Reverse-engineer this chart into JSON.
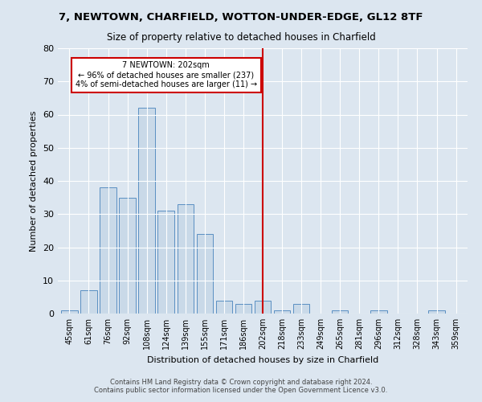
{
  "title": "7, NEWTOWN, CHARFIELD, WOTTON-UNDER-EDGE, GL12 8TF",
  "subtitle": "Size of property relative to detached houses in Charfield",
  "xlabel": "Distribution of detached houses by size in Charfield",
  "ylabel": "Number of detached properties",
  "categories": [
    "45sqm",
    "61sqm",
    "76sqm",
    "92sqm",
    "108sqm",
    "124sqm",
    "139sqm",
    "155sqm",
    "171sqm",
    "186sqm",
    "202sqm",
    "218sqm",
    "233sqm",
    "249sqm",
    "265sqm",
    "281sqm",
    "296sqm",
    "312sqm",
    "328sqm",
    "343sqm",
    "359sqm"
  ],
  "values": [
    1,
    7,
    38,
    35,
    62,
    31,
    33,
    24,
    4,
    3,
    4,
    1,
    3,
    0,
    1,
    0,
    1,
    0,
    0,
    1,
    0
  ],
  "bar_color": "#c9d9e8",
  "bar_edge_color": "#5a8fc2",
  "vline_x_index": 10,
  "vline_color": "#cc0000",
  "annotation_text": "7 NEWTOWN: 202sqm\n← 96% of detached houses are smaller (237)\n4% of semi-detached houses are larger (11) →",
  "annotation_box_color": "#ffffff",
  "annotation_box_edge_color": "#cc0000",
  "ylim": [
    0,
    80
  ],
  "yticks": [
    0,
    10,
    20,
    30,
    40,
    50,
    60,
    70,
    80
  ],
  "footer": "Contains HM Land Registry data © Crown copyright and database right 2024.\nContains public sector information licensed under the Open Government Licence v3.0.",
  "bg_color": "#dce6f0",
  "plot_bg_color": "#dce6f0"
}
